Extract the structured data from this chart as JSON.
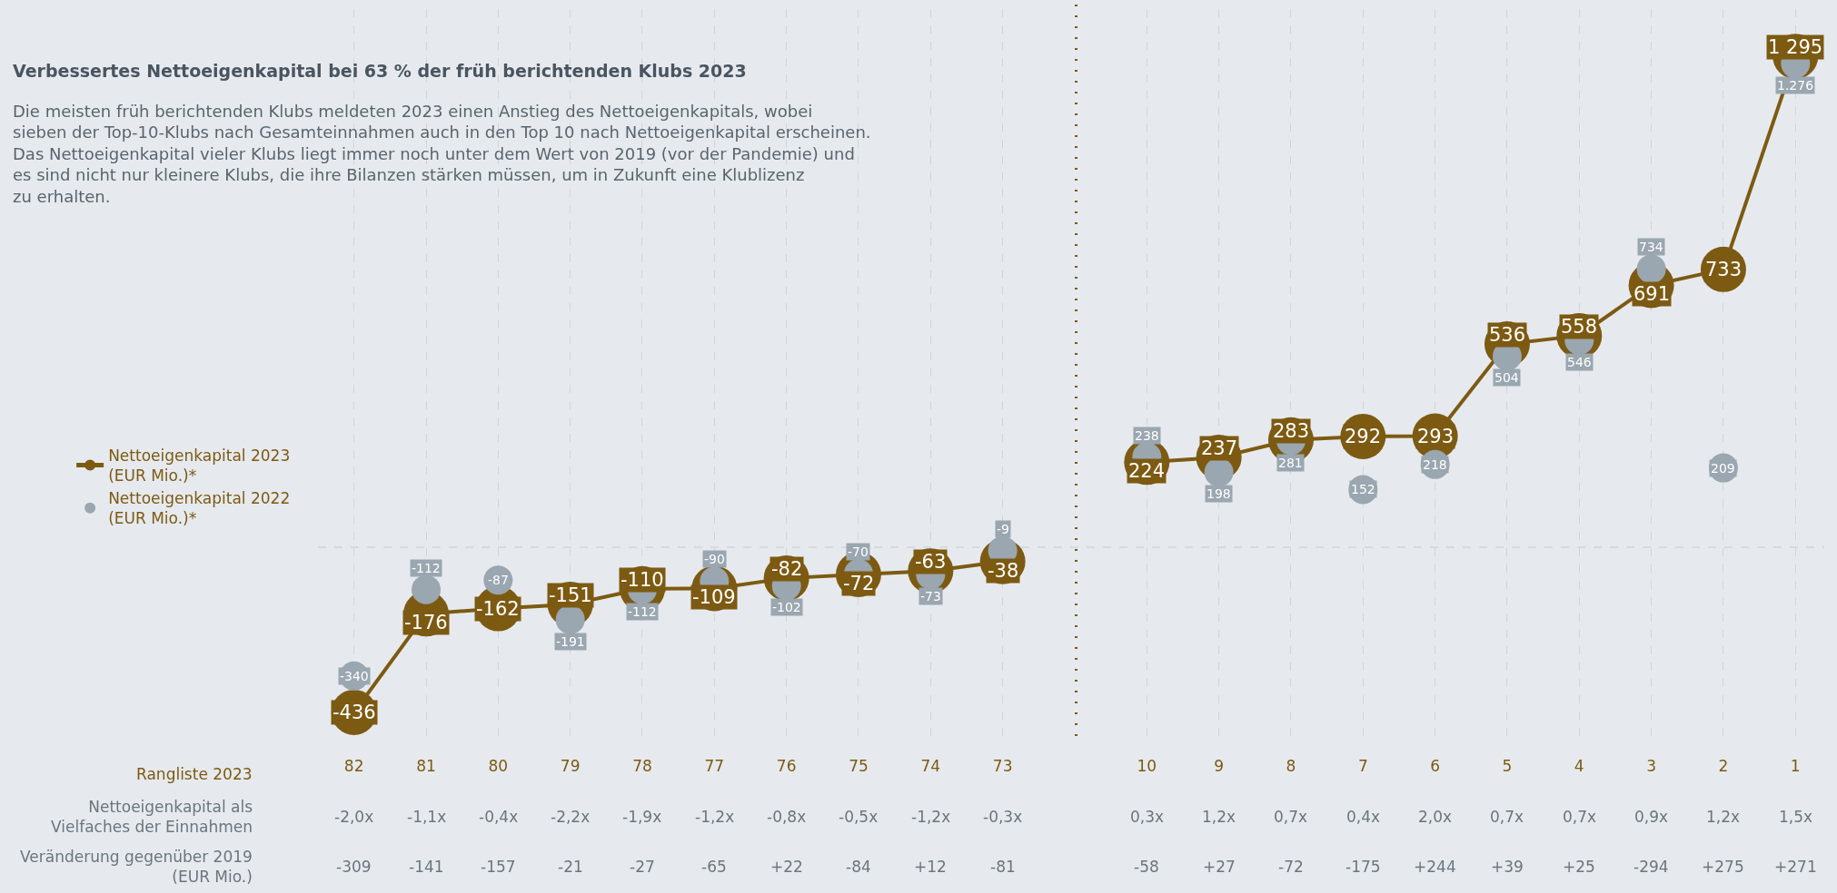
{
  "chart_data": {
    "type": "line",
    "title": "Verbessertes Nettoeigenkapital bei 63 % der früh berichtenden Klubs 2023",
    "subtitle": "Die meisten früh berichtenden Klubs meldeten 2023 einen Anstieg des Nettoeigenkapitals, wobei sieben der Top-10-Klubs nach Gesamteinnahmen auch in den Top 10 nach Nettoeigenkapital erscheinen. Das Nettoeigenkapital vieler Klubs liegt immer noch unter dem Wert von 2019 (vor der Pandemie) und es sind nicht nur kleinere Klubs, die ihre Bilanzen stärken müssen, um in Zukunft eine Klublizenz zu erhalten.",
    "xlabel": "Rangliste 2023",
    "categories": [
      "82",
      "81",
      "80",
      "79",
      "78",
      "77",
      "76",
      "75",
      "74",
      "73",
      null,
      "10",
      "9",
      "8",
      "7",
      "6",
      "5",
      "4",
      "3",
      "2",
      "1"
    ],
    "series": [
      {
        "name": "Nettoeigenkapital 2023 (EUR Mio.)*",
        "color": "#7d5a12",
        "values": [
          -436,
          -176,
          -162,
          -151,
          -110,
          -109,
          -82,
          -72,
          -63,
          -38,
          null,
          224,
          237,
          283,
          292,
          293,
          536,
          558,
          691,
          733,
          1295
        ],
        "value_labels": [
          "-436",
          "-176",
          "-162",
          "-151",
          "-110",
          "-109",
          "-82",
          "-72",
          "-63",
          "-38",
          null,
          "224",
          "237",
          "283",
          "292",
          "293",
          "536",
          "558",
          "691",
          "733",
          "1 295"
        ]
      },
      {
        "name": "Nettoeigenkapital 2022 (EUR Mio.)*",
        "type": "scatter",
        "color": "#9aa6b0",
        "values": [
          -340,
          -112,
          -87,
          -191,
          -112,
          -90,
          -102,
          -70,
          -73,
          -9,
          null,
          238,
          198,
          281,
          152,
          218,
          504,
          546,
          734,
          209,
          1276
        ],
        "value_labels": [
          "-340",
          "-112",
          "-87",
          "-191",
          "-112",
          "-90",
          "-102",
          "-70",
          "-73",
          "-9",
          null,
          "238",
          "198",
          "281",
          "152",
          "218",
          "504",
          "546",
          "734",
          "209",
          "1.276"
        ]
      }
    ],
    "marker": "circle",
    "grid": "x",
    "legend": "left",
    "ref_lines": [
      {
        "axis": "y",
        "value": 0,
        "color": "#d0d6dc",
        "line_style": "dashed"
      }
    ],
    "annotations": [
      "Nettoeigenkapital als Vielfaches der Einnahmen",
      "-2,0x",
      "-1,1x",
      "-0,4x",
      "-2,2x",
      "-1,9x",
      "-1,2x",
      "-0,8x",
      "-0,5x",
      "-1,2x",
      "-0,3x",
      "0,3x",
      "1,2x",
      "0,7x",
      "0,4x",
      "2,0x",
      "0,7x",
      "0,7x",
      "0,9x",
      "1,2x",
      "1,5x",
      "Veränderung gegenüber 2019 (EUR Mio.)",
      "-309",
      "-141",
      "-157",
      "-21",
      "-27",
      "-65",
      "+22",
      "-84",
      "+12",
      "-81",
      "-58",
      "+27",
      "-72",
      "-175",
      "+244",
      "+39",
      "+25",
      "-294",
      "+275",
      "+271"
    ]
  }
}
